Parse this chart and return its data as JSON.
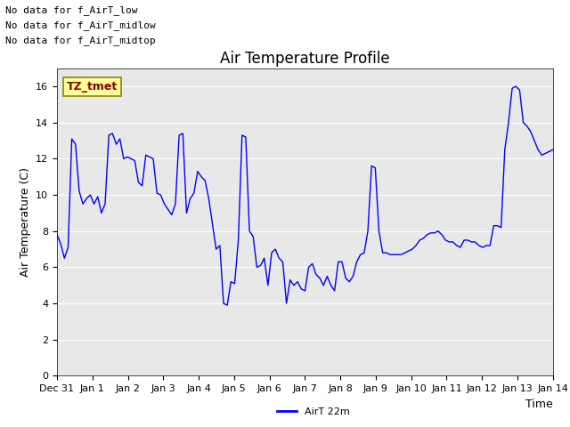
{
  "title": "Air Temperature Profile",
  "xlabel": "Time",
  "ylabel": "Air Temperature (C)",
  "legend_label": "AirT 22m",
  "annotations": [
    "No data for f_AirT_low",
    "No data for f_AirT_midlow",
    "No data for f_AirT_midtop"
  ],
  "legend_box_text": "TZ_tmet",
  "ylim": [
    0,
    17
  ],
  "yticks": [
    0,
    2,
    4,
    6,
    8,
    10,
    12,
    14,
    16
  ],
  "line_color": "#0000ff",
  "background_color": "#e8e8e8",
  "x_labels": [
    "Dec 31",
    "Jan 1",
    "Jan 2",
    "Jan 3",
    "Jan 4",
    "Jan 5",
    "Jan 6",
    "Jan 7",
    "Jan 8",
    "Jan 9",
    "Jan 10",
    "Jan 11",
    "Jan 12",
    "Jan 13",
    "Jan 14"
  ],
  "x_values": [
    0,
    1,
    2,
    3,
    4,
    5,
    6,
    7,
    8,
    9,
    10,
    11,
    12,
    13,
    14
  ],
  "y_values": [
    7.8,
    7.3,
    6.5,
    7.1,
    13.1,
    12.8,
    10.2,
    9.5,
    9.8,
    10.0,
    9.5,
    9.9,
    9.0,
    9.5,
    13.3,
    13.4,
    12.8,
    13.1,
    12.0,
    12.1,
    12.0,
    11.9,
    10.7,
    10.5,
    12.2,
    12.1,
    12.0,
    10.1,
    10.0,
    9.5,
    9.2,
    8.9,
    9.5,
    13.3,
    13.4,
    9.0,
    9.8,
    10.1,
    11.3,
    11.0,
    10.8,
    9.8,
    8.4,
    7.0,
    7.2,
    4.0,
    3.9,
    5.2,
    5.1,
    7.5,
    13.3,
    13.2,
    8.0,
    7.7,
    6.0,
    6.1,
    6.5,
    5.0,
    6.8,
    7.0,
    6.5,
    6.3,
    4.0,
    5.3,
    5.0,
    5.2,
    4.8,
    4.7,
    6.0,
    6.2,
    5.6,
    5.4,
    5.0,
    5.5,
    5.0,
    4.7,
    6.3,
    6.3,
    5.4,
    5.2,
    5.5,
    6.3,
    6.7,
    6.8,
    8.0,
    11.6,
    11.5,
    8.0,
    6.8,
    6.8,
    6.7,
    6.7,
    6.7,
    6.7,
    6.8,
    6.9,
    7.0,
    7.2,
    7.5,
    7.6,
    7.8,
    7.9,
    7.9,
    8.0,
    7.8,
    7.5,
    7.4,
    7.4,
    7.2,
    7.1,
    7.5,
    7.5,
    7.4,
    7.4,
    7.2,
    7.1,
    7.2,
    7.2,
    8.3,
    8.3,
    8.2,
    12.5,
    14.0,
    15.9,
    16.0,
    15.8,
    14.0,
    13.8,
    13.5,
    13.0,
    12.5,
    12.2,
    12.3,
    12.4,
    12.5
  ],
  "title_fontsize": 12,
  "axis_label_fontsize": 9,
  "tick_fontsize": 8,
  "ann_fontsize": 8
}
